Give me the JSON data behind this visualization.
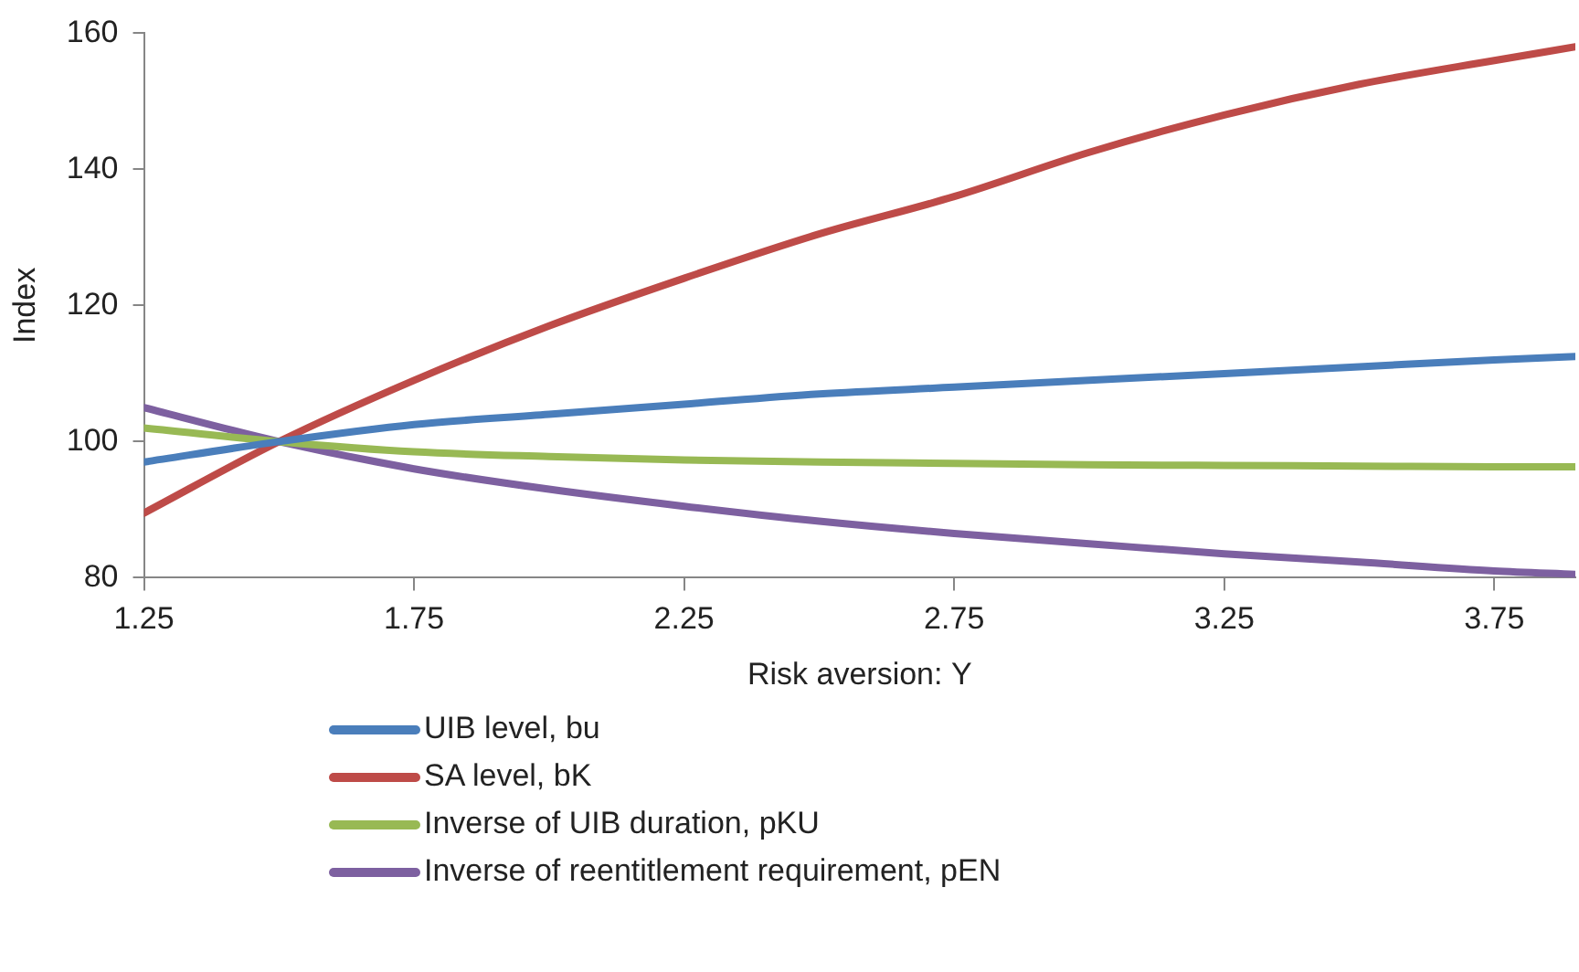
{
  "chart_data": {
    "type": "line",
    "xlabel": "Risk aversion: Υ",
    "ylabel": "Index",
    "x": [
      1.25,
      1.5,
      1.75,
      2,
      2.25,
      2.5,
      2.75,
      3,
      3.25,
      3.5,
      3.75,
      3.9
    ],
    "series": [
      {
        "name": "UIB level, bu",
        "color": "#4a7ebb",
        "values": [
          97,
          100,
          102.5,
          104,
          105.5,
          107,
          108,
          109,
          110,
          111,
          112,
          112.5
        ]
      },
      {
        "name": "SA level, bK",
        "color": "#be4b48",
        "values": [
          89.5,
          100,
          109,
          117,
          124,
          130.5,
          136,
          142.5,
          148,
          152.5,
          156,
          158
        ]
      },
      {
        "name": "Inverse of UIB duration, pKU",
        "color": "#98b954",
        "values": [
          102,
          100,
          98.5,
          97.8,
          97.3,
          97,
          96.8,
          96.6,
          96.5,
          96.4,
          96.3,
          96.3
        ]
      },
      {
        "name": "Inverse of reentitlement requirement, pEN",
        "color": "#7d60a0",
        "values": [
          105,
          100,
          96,
          93,
          90.5,
          88.3,
          86.5,
          85,
          83.5,
          82.3,
          81,
          80.5
        ]
      }
    ],
    "xlim": [
      1.25,
      3.9
    ],
    "xticks": [
      1.25,
      1.75,
      2.25,
      2.75,
      3.25,
      3.75
    ],
    "ylim": [
      80,
      160
    ],
    "yticks": [
      80,
      100,
      120,
      140,
      160
    ],
    "grid": false,
    "legend": "bottom",
    "marker": "none",
    "line_style": "solid"
  }
}
